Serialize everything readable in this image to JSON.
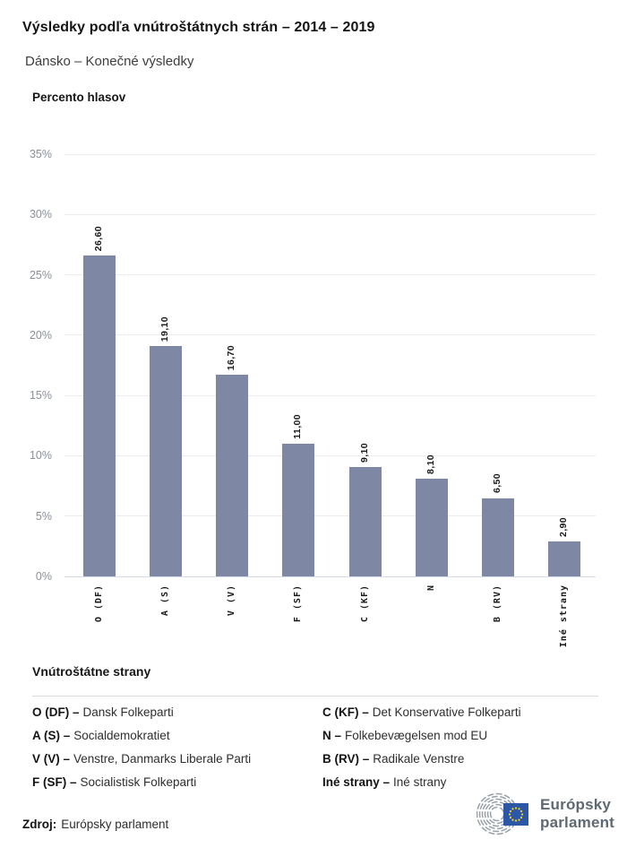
{
  "header": {
    "title": "Výsledky podľa vnútroštátnych strán – 2014 – 2019",
    "subtitle": "Dánsko – Konečné výsledky"
  },
  "chart_data": {
    "type": "bar",
    "axis_title": "Percento hlasov",
    "categories": [
      "O (DF)",
      "A (S)",
      "V (V)",
      "F (SF)",
      "C (KF)",
      "N",
      "B (RV)",
      "Iné strany"
    ],
    "values": [
      26.6,
      19.1,
      16.7,
      11.0,
      9.1,
      8.1,
      6.5,
      2.9
    ],
    "value_labels": [
      "26,60",
      "19,10",
      "16,70",
      "11,00",
      "9,10",
      "8,10",
      "6,50",
      "2,90"
    ],
    "ylim": [
      0,
      35
    ],
    "yticks": [
      0,
      5,
      10,
      15,
      20,
      25,
      30,
      35
    ],
    "ytick_labels": [
      "0%",
      "5%",
      "10%",
      "15%",
      "20%",
      "25%",
      "30%",
      "35%"
    ],
    "grid": true,
    "legend_position": "none",
    "bar_color": "#7e88a5"
  },
  "legend": {
    "heading": "Vnútroštátne strany",
    "items": [
      {
        "label": "O (DF) –",
        "name": "Dansk Folkeparti"
      },
      {
        "label": "A (S) –",
        "name": "Socialdemokratiet"
      },
      {
        "label": "V (V) –",
        "name": "Venstre, Danmarks Liberale Parti"
      },
      {
        "label": "F (SF) –",
        "name": "Socialistisk Folkeparti"
      },
      {
        "label": "C (KF) –",
        "name": "Det Konservative Folkeparti"
      },
      {
        "label": "N –",
        "name": "Folkebevægelsen mod EU"
      },
      {
        "label": "B (RV) –",
        "name": "Radikale Venstre"
      },
      {
        "label": "Iné strany –",
        "name": "Iné strany"
      }
    ]
  },
  "footer": {
    "source_label": "Zdroj:",
    "source_value": "Európsky parlament",
    "logo": {
      "line1": "Európsky",
      "line2": "parlament",
      "hemicycle_color": "#99a0a8",
      "flag_color": "#2b57a6",
      "star_color": "#ffd617"
    }
  }
}
